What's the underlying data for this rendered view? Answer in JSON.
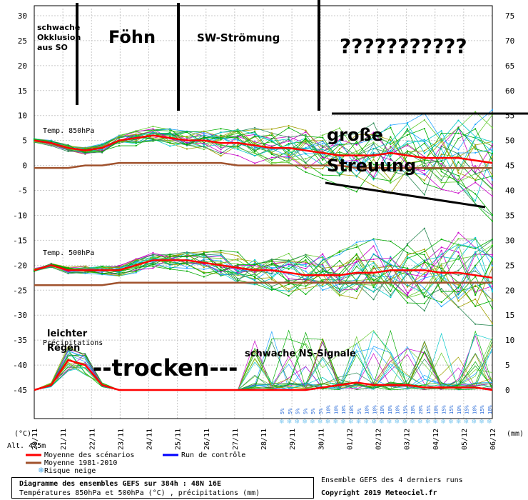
{
  "chart_data": {
    "type": "line",
    "title": "Diagramme des ensembles GEFS sur 384h : 48N 16E",
    "subtitle": "Températures 850hPa et 500hPa (°C) , précipitations (mm)",
    "y_left": {
      "label": "(°C)",
      "range": [
        -45,
        30
      ],
      "ticks": [
        "30",
        "25",
        "20",
        "15",
        "10",
        "5",
        "0",
        "-5",
        "-10",
        "-15",
        "-20",
        "-25",
        "-30",
        "-35",
        "-40",
        "-45"
      ]
    },
    "y_right": {
      "label": "(mm)",
      "range": [
        0,
        75
      ],
      "ticks": [
        "75",
        "70",
        "65",
        "60",
        "55",
        "50",
        "45",
        "40",
        "35",
        "30",
        "25",
        "20",
        "15",
        "10",
        "5",
        "0"
      ]
    },
    "x_ticks": [
      "20/11",
      "21/11",
      "22/11",
      "23/11",
      "24/11",
      "25/11",
      "26/11",
      "27/11",
      "28/11",
      "29/11",
      "30/11",
      "01/12",
      "02/12",
      "03/12",
      "04/12",
      "05/12",
      "06/12"
    ],
    "altitude": "Alt. 475m",
    "panel_labels": {
      "t850": "Temp. 850hPa",
      "t500": "Temp. 500hPa",
      "precip": "Précipitations"
    },
    "series": [
      {
        "name": "Moyenne des scénarios",
        "color": "#ff0000",
        "t850": [
          5,
          4.5,
          3.5,
          3,
          3.5,
          5,
          5.5,
          6,
          5.5,
          5,
          5,
          4.5,
          4.5,
          4,
          3.5,
          3.5,
          3,
          2.5,
          2,
          2,
          2,
          2.5,
          2,
          1.5,
          1.5,
          1.5,
          1,
          0.5
        ],
        "t500": [
          -21,
          -20,
          -21,
          -21,
          -21,
          -21,
          -20,
          -19,
          -19,
          -19,
          -19.5,
          -20,
          -20.5,
          -21,
          -21,
          -21.5,
          -22,
          -22,
          -22,
          -21.5,
          -21.5,
          -21,
          -21,
          -21,
          -21.5,
          -21.5,
          -22,
          -22.5
        ],
        "precip": [
          0,
          1,
          6,
          5,
          1,
          0,
          0,
          0,
          0,
          0,
          0,
          0,
          0,
          0,
          0,
          0,
          0,
          0.5,
          1,
          1.5,
          1,
          1,
          1,
          0.5,
          0.5,
          0.5,
          0.5,
          0
        ]
      },
      {
        "name": "Moyenne 1981-2010",
        "color": "#a0522d",
        "t850": [
          -0.5,
          -0.5,
          -0.5,
          0,
          0,
          0.5,
          0.5,
          0.5,
          0.5,
          0.5,
          0.5,
          0.5,
          0,
          0,
          0,
          0,
          0,
          0,
          0,
          -0.5,
          -0.5,
          -0.5,
          -0.5,
          -0.5,
          -0.5,
          -0.5,
          -0.5,
          -0.5
        ],
        "t500": [
          -24,
          -24,
          -24,
          -24,
          -24,
          -23.5,
          -23.5,
          -23.5,
          -23.5,
          -23.5,
          -23.5,
          -23.5,
          -23.5,
          -23.5,
          -23.5,
          -23.5,
          -23.5,
          -23.5,
          -23.5,
          -23.5,
          -23.5,
          -23.5,
          -23.5,
          -23.5,
          -23.5,
          -23.5,
          -23.5,
          -23.5
        ]
      },
      {
        "name": "Run de contrôle",
        "color": "#0000ff"
      }
    ],
    "snow_risk_label": "Risque neige",
    "snow_risk_percent": [
      "5%",
      "5%",
      "5%",
      "5%",
      "5%",
      "5%",
      "10%",
      "10%",
      "10%",
      "10%",
      "5%",
      "10%",
      "10%",
      "10%",
      "10%",
      "10%",
      "15%",
      "10%",
      "20%",
      "15%",
      "10%",
      "15%",
      "15%",
      "10%",
      "15%",
      "10%",
      "15%",
      "10%"
    ],
    "annotations": {
      "schwache_okklusion": [
        "schwache",
        "Okklusion",
        "aus SO"
      ],
      "foehn": "Föhn",
      "sw_stroemung": "SW-Strömung",
      "questions": "???????????",
      "grosse": "große",
      "streuung": "Streuung",
      "leichter": "leichter",
      "regen": "Regen",
      "trocken": "--trocken---",
      "ns_signale": "schwache NS-Signale"
    },
    "legend": [
      "Moyenne des scénarios",
      "Moyenne 1981-2010",
      "Run de contrôle",
      "Risque neige"
    ],
    "grid": true
  },
  "footer": {
    "title": "Diagramme des ensembles GEFS sur 384h : 48N 16E",
    "subtitle": "Températures 850hPa et 500hPa (°C) , précipitations (mm)",
    "ensemble_note": "Ensemble GEFS des 4 derniers runs",
    "copyright": "Copyright 2019 Meteociel.fr"
  }
}
